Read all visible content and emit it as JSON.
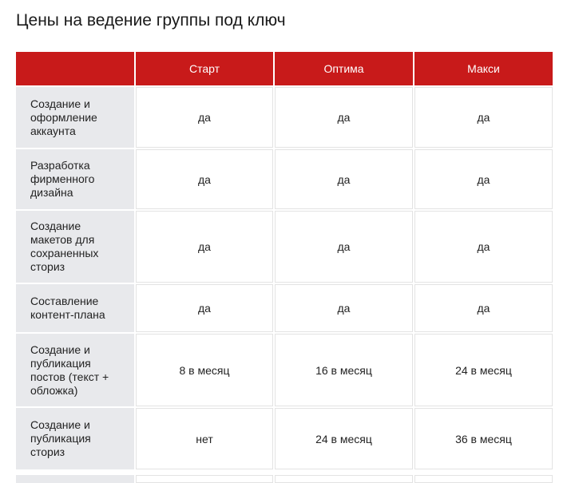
{
  "header": {
    "title": "Цены на ведение группы под ключ"
  },
  "table": {
    "columns": [
      "",
      "Старт",
      "Оптима",
      "Макси"
    ],
    "rows": [
      [
        "Создание и оформление аккаунта",
        "да",
        "да",
        "да"
      ],
      [
        "Разработка фирменного дизайна",
        "да",
        "да",
        "да"
      ],
      [
        "Создание макетов для сохраненных сториз",
        "да",
        "да",
        "да"
      ],
      [
        "Составление контент-плана",
        "да",
        "да",
        "да"
      ],
      [
        "Создание и публикация постов (текст + обложка)",
        "8 в месяц",
        "16 в месяц",
        "24 в месяц"
      ],
      [
        "Создание и публикация сториз",
        "нет",
        "24 в месяц",
        "36 в месяц"
      ]
    ]
  }
}
